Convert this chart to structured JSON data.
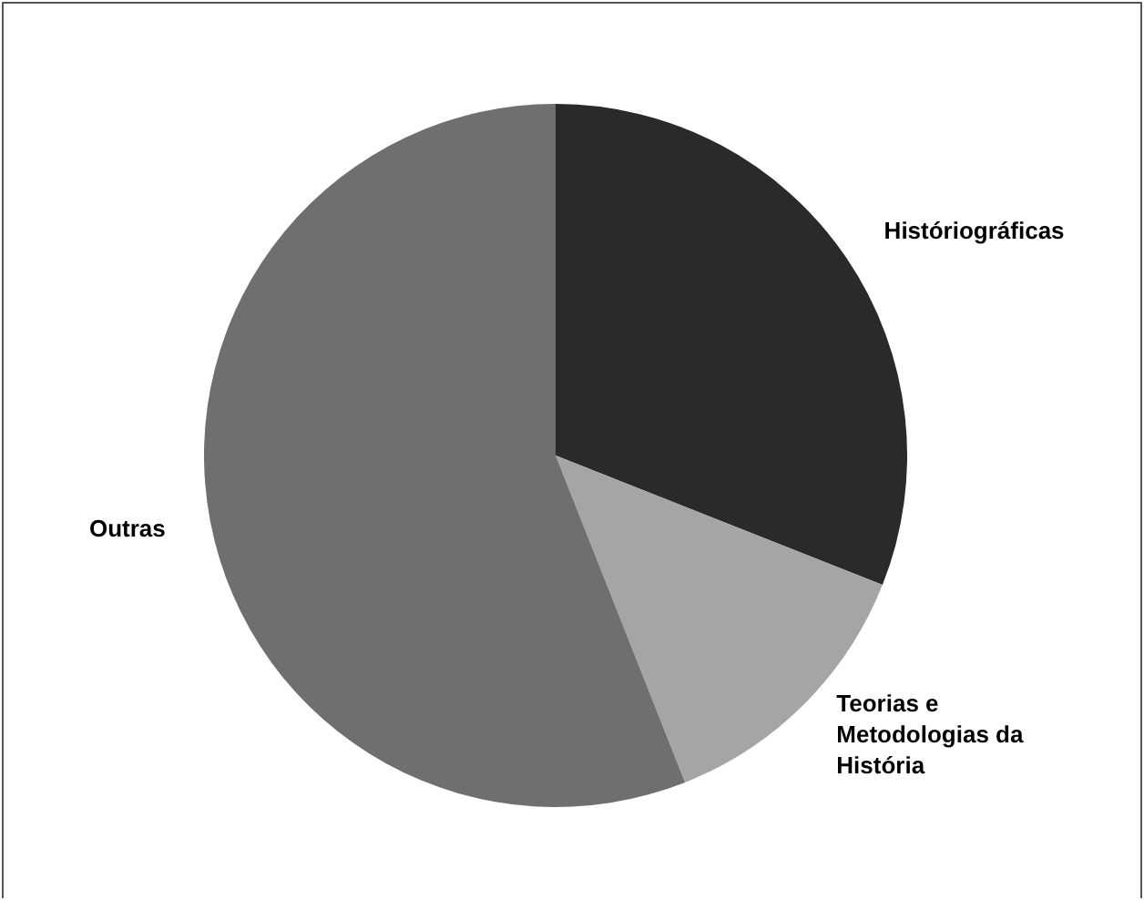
{
  "chart_data": {
    "type": "pie",
    "categories": [
      "Históriográficas",
      "Teorias e Metodologias da História",
      "Outras"
    ],
    "values": [
      31,
      13,
      56
    ],
    "colors": [
      "#2a2a2a",
      "#a5a5a5",
      "#6f6f6f"
    ]
  }
}
